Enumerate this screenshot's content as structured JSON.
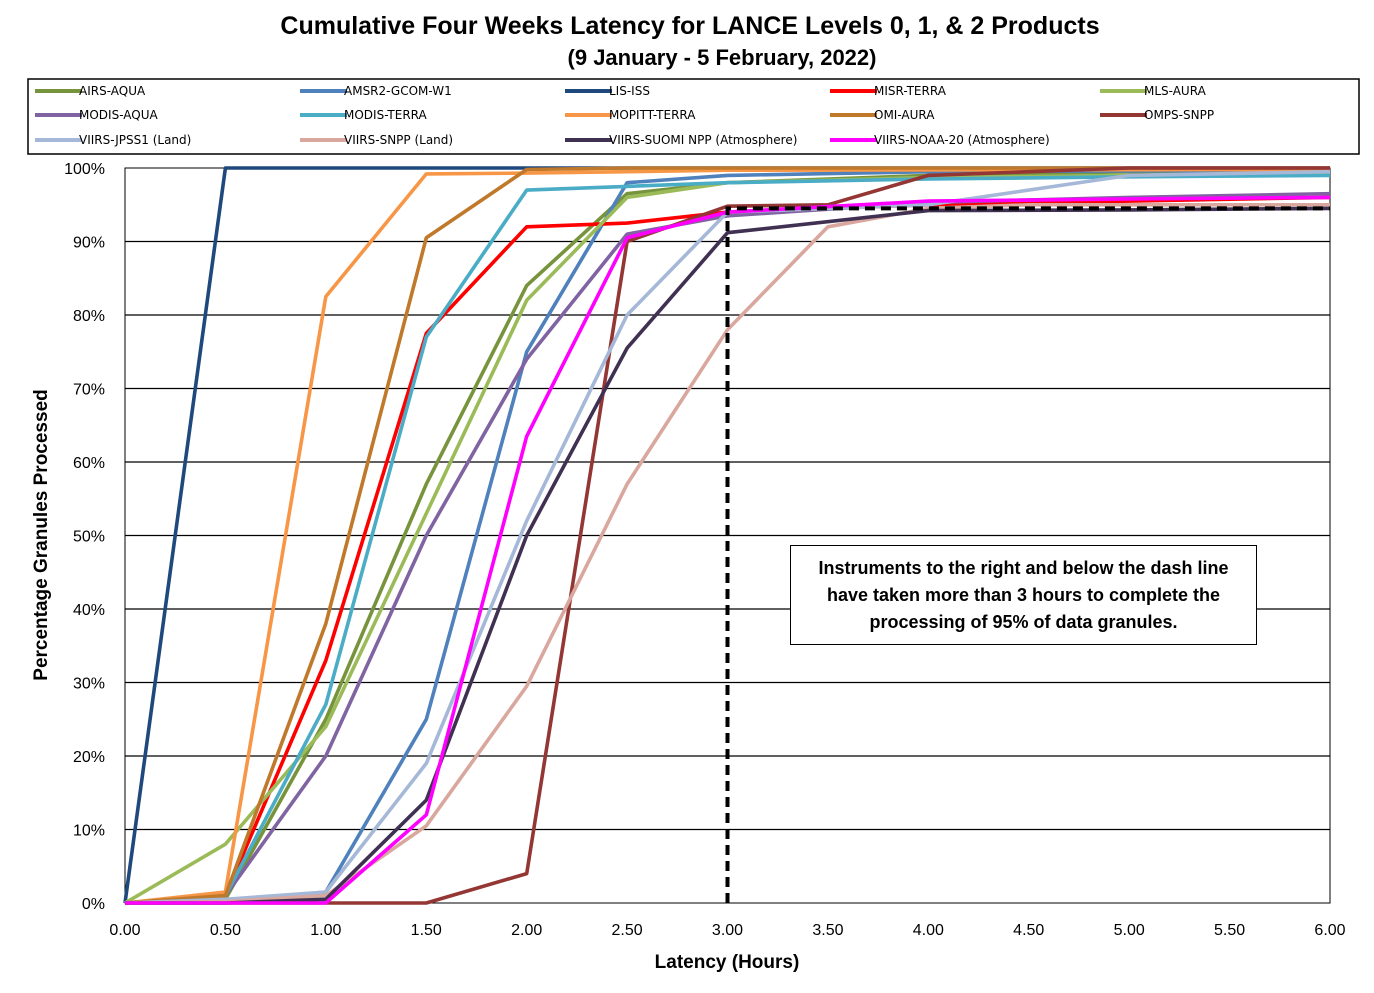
{
  "chart_data": {
    "type": "line",
    "title": "Cumulative Four Weeks Latency  for LANCE Levels 0, 1, & 2 Products",
    "subtitle": "(9  January   -  5  February,  2022)",
    "xlabel": "Latency (Hours)",
    "ylabel": "Percentage Granules Processed",
    "xlim": [
      0,
      6
    ],
    "ylim": [
      0,
      100
    ],
    "x_ticks": [
      "0.00",
      "0.50",
      "1.00",
      "1.50",
      "2.00",
      "2.50",
      "3.00",
      "3.50",
      "4.00",
      "4.50",
      "5.00",
      "5.50",
      "6.00"
    ],
    "y_ticks": [
      "0%",
      "10%",
      "20%",
      "30%",
      "40%",
      "50%",
      "60%",
      "70%",
      "80%",
      "90%",
      "100%"
    ],
    "grid": "horizontal",
    "legend_position": "top",
    "annotation": "Instruments to the right and below the dash line have taken more than 3 hours to complete the processing of 95% of data granules.",
    "threshold_line": {
      "x": 3.0,
      "y": 94.5,
      "style": "dashed",
      "color": "#000000"
    },
    "series": [
      {
        "name": "AIRS-AQUA",
        "color": "#77933C",
        "x": [
          0,
          0.5,
          1,
          1.5,
          2,
          2.5,
          3,
          4,
          5,
          6
        ],
        "y": [
          0,
          0.5,
          25,
          57,
          84,
          96.5,
          98,
          99,
          99.5,
          99.6
        ]
      },
      {
        "name": "AMSR2-GCOM-W1",
        "color": "#4F81BD",
        "x": [
          0,
          0.5,
          1,
          1.5,
          2,
          2.5,
          3,
          4,
          5,
          6
        ],
        "y": [
          0,
          0.2,
          1.5,
          25,
          75,
          98,
          99,
          99.5,
          99.6,
          99.7
        ]
      },
      {
        "name": "LIS-ISS",
        "color": "#1F497D",
        "x": [
          0,
          0.5,
          1,
          6
        ],
        "y": [
          0,
          100,
          100,
          100
        ]
      },
      {
        "name": "MISR-TERRA",
        "color": "#FF0000",
        "x": [
          0,
          0.5,
          1,
          1.5,
          2,
          2.5,
          3,
          4,
          5,
          6
        ],
        "y": [
          0,
          1,
          33,
          77.5,
          92,
          92.5,
          94,
          95,
          95.5,
          96
        ]
      },
      {
        "name": "MLS-AURA",
        "color": "#9BBB59",
        "x": [
          0,
          0.5,
          1,
          1.5,
          2,
          2.5,
          3,
          4,
          5,
          6
        ],
        "y": [
          0,
          8,
          24,
          53,
          82,
          96,
          98,
          98.7,
          99,
          99.2
        ]
      },
      {
        "name": "MODIS-AQUA",
        "color": "#8064A2",
        "x": [
          0,
          0.5,
          1,
          1.5,
          2,
          2.5,
          3,
          4,
          5,
          6
        ],
        "y": [
          0,
          1,
          20,
          50,
          74,
          91,
          93.5,
          95.3,
          96,
          96.5
        ]
      },
      {
        "name": "MODIS-TERRA",
        "color": "#4BACC6",
        "x": [
          0,
          0.5,
          1,
          1.5,
          2,
          2.5,
          3,
          4,
          5,
          6
        ],
        "y": [
          0,
          1,
          27,
          77,
          97,
          97.5,
          98,
          98.5,
          98.8,
          99
        ]
      },
      {
        "name": "MOPITT-TERRA",
        "color": "#F79646",
        "x": [
          0,
          0.5,
          1,
          1.5,
          2,
          2.5,
          3,
          6
        ],
        "y": [
          0,
          1.5,
          82.5,
          99.2,
          99.3,
          99.5,
          99.7,
          99.8
        ]
      },
      {
        "name": "OMI-AURA",
        "color": "#C0782A",
        "x": [
          0,
          0.5,
          1,
          1.5,
          2,
          2.5,
          6
        ],
        "y": [
          0,
          1,
          38,
          90.5,
          99.8,
          100,
          100
        ]
      },
      {
        "name": "OMPS-SNPP",
        "color": "#943634",
        "x": [
          0,
          0.5,
          1,
          1.5,
          2,
          2.5,
          3,
          3.5,
          4,
          4.5,
          5,
          6
        ],
        "y": [
          0,
          0,
          0,
          0,
          4,
          90,
          94.8,
          95,
          99,
          99.5,
          100,
          100
        ]
      },
      {
        "name": "VIIRS-JPSS1 (Land)",
        "color": "#A6B8D8",
        "x": [
          0,
          0.5,
          1,
          1.5,
          2,
          2.5,
          3,
          4,
          5,
          6
        ],
        "y": [
          0,
          0.5,
          1.5,
          19,
          52,
          80,
          94,
          95,
          99,
          99.5
        ]
      },
      {
        "name": "VIIRS-SNPP (Land)",
        "color": "#D9A79E",
        "x": [
          0,
          0.5,
          1,
          1.5,
          2,
          2.5,
          3,
          3.5,
          4,
          4.5,
          5,
          6
        ],
        "y": [
          0,
          0.2,
          1,
          10.5,
          29.5,
          57,
          78,
          92,
          94.5,
          95,
          95,
          95
        ]
      },
      {
        "name": "VIIRS-SUOMI NPP (Atmosphere)",
        "color": "#403152",
        "x": [
          0,
          0.5,
          1,
          1.5,
          2,
          2.5,
          3,
          4,
          5,
          6
        ],
        "y": [
          0,
          0,
          0.5,
          14,
          50,
          75.5,
          91.2,
          94.2,
          94.3,
          94.5
        ]
      },
      {
        "name": "VIIRS-NOAA-20 (Atmosphere)",
        "color": "#FF00FF",
        "x": [
          0,
          0.5,
          1,
          1.5,
          2,
          2.5,
          3,
          4,
          5,
          6
        ],
        "y": [
          0,
          0,
          0,
          12,
          63.5,
          90.5,
          94,
          95.5,
          95.8,
          96
        ]
      }
    ]
  }
}
